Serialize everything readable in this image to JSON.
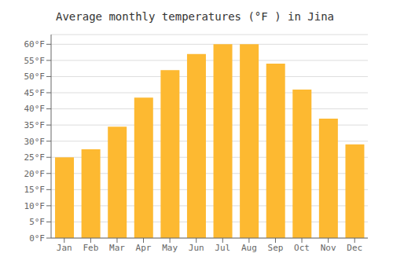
{
  "chart_data": {
    "type": "bar",
    "title": "Average monthly temperatures (°F ) in Jina",
    "categories": [
      "Jan",
      "Feb",
      "Mar",
      "Apr",
      "May",
      "Jun",
      "Jul",
      "Aug",
      "Sep",
      "Oct",
      "Nov",
      "Dec"
    ],
    "values": [
      25,
      27.5,
      34.5,
      43.5,
      52,
      57,
      60,
      60,
      54,
      46,
      37,
      29
    ],
    "color": "#FDB931",
    "ylim": [
      0,
      63
    ],
    "yticks": [
      {
        "value": 0,
        "label": "0°F"
      },
      {
        "value": 5,
        "label": "5°F"
      },
      {
        "value": 10,
        "label": "10°F"
      },
      {
        "value": 15,
        "label": "15°F"
      },
      {
        "value": 20,
        "label": "20°F"
      },
      {
        "value": 25,
        "label": "25°F"
      },
      {
        "value": 30,
        "label": "30°F"
      },
      {
        "value": 35,
        "label": "35°F"
      },
      {
        "value": 40,
        "label": "40°F"
      },
      {
        "value": 45,
        "label": "45°F"
      },
      {
        "value": 50,
        "label": "50°F"
      },
      {
        "value": 55,
        "label": "55°F"
      },
      {
        "value": 60,
        "label": "60°F"
      }
    ],
    "grid": true
  }
}
